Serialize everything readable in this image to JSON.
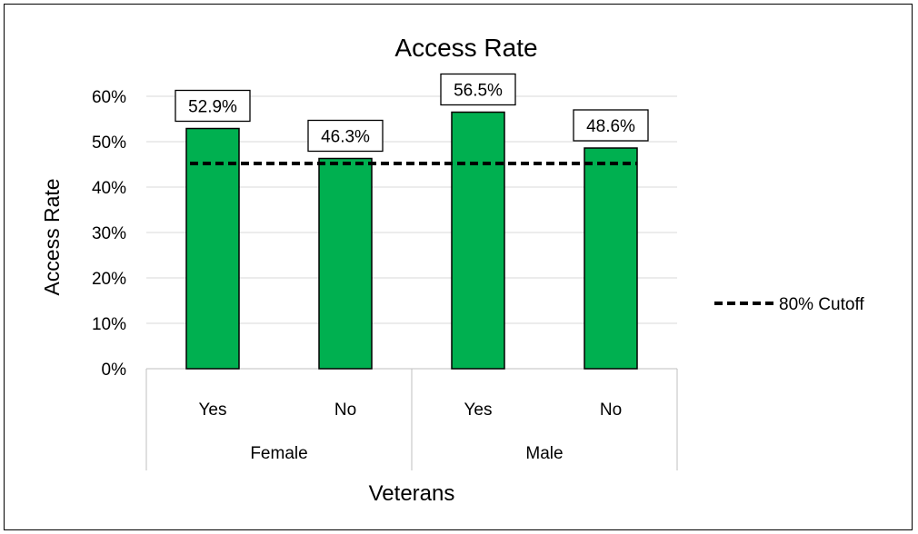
{
  "chart_data": {
    "type": "bar",
    "title": "Access Rate",
    "xlabel": "Veterans",
    "ylabel": "Access Rate",
    "groups": [
      {
        "label": "Female",
        "categories": [
          "Yes",
          "No"
        ]
      },
      {
        "label": "Male",
        "categories": [
          "Yes",
          "No"
        ]
      }
    ],
    "categories": [
      "Yes",
      "No",
      "Yes",
      "No"
    ],
    "values": [
      52.9,
      46.3,
      56.5,
      48.6
    ],
    "data_labels": [
      "52.9%",
      "46.3%",
      "56.5%",
      "48.6%"
    ],
    "ylim": [
      0,
      60
    ],
    "yticks": [
      0,
      10,
      20,
      30,
      40,
      50,
      60
    ],
    "ytick_labels": [
      "0%",
      "10%",
      "20%",
      "30%",
      "40%",
      "50%",
      "60%"
    ],
    "grid": true,
    "bar_color": "#00b050",
    "cutoff": {
      "name": "80% Cutoff",
      "value": 45.2,
      "style": "dashed"
    },
    "legend": {
      "position": "right",
      "entries": [
        "80% Cutoff"
      ]
    }
  }
}
